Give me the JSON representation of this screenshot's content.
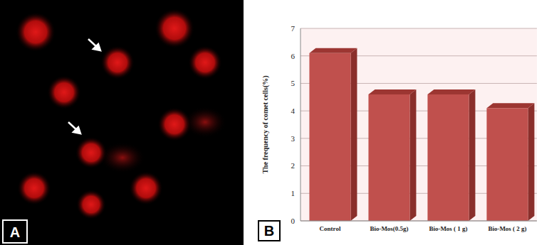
{
  "chart_data": {
    "type": "bar",
    "categories": [
      "Control",
      "Bio-Mos(0.5g)",
      "Bio-Mos ( 1 g)",
      "Bio-Mos ( 2 g)"
    ],
    "values": [
      6.1,
      4.6,
      4.6,
      4.1
    ],
    "color": "#c0504d",
    "ylabel": "The frequency of comet cells(%)",
    "ylim": [
      0,
      7
    ],
    "yticks": [
      0,
      1,
      2,
      3,
      4,
      5,
      6,
      7
    ],
    "grid": true
  },
  "panel_labels": [
    "A",
    "B"
  ]
}
